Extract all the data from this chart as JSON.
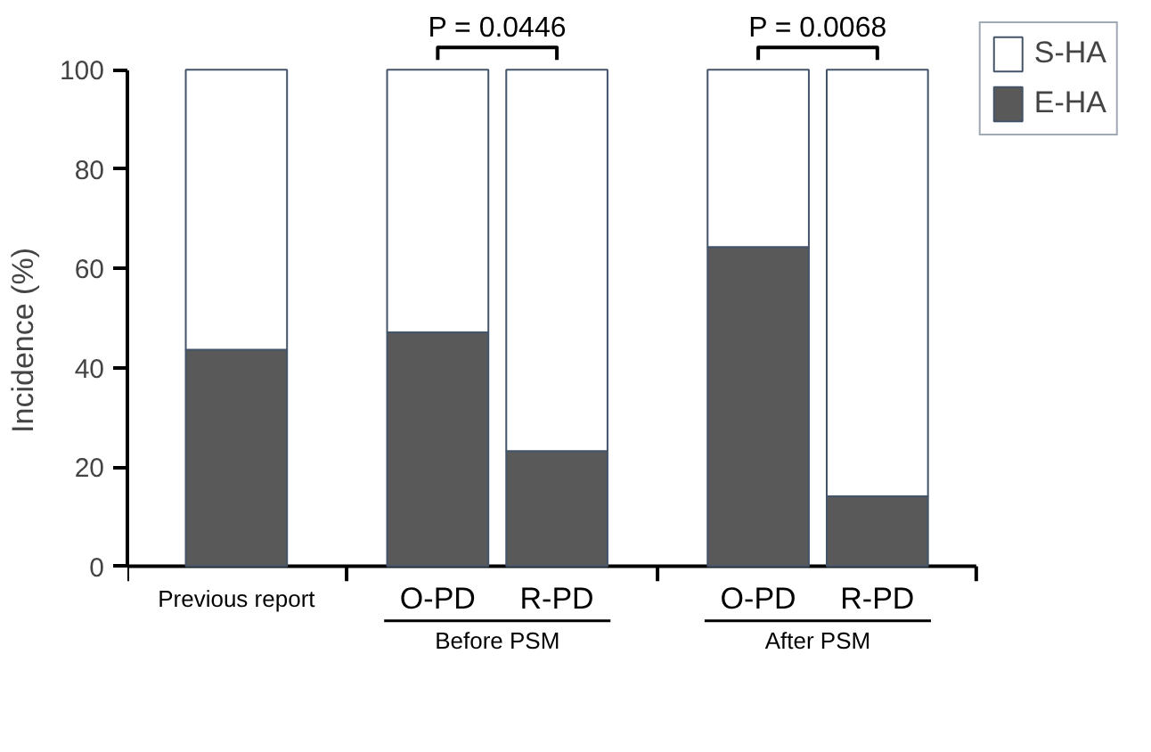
{
  "chart_data": {
    "type": "bar",
    "stacked": true,
    "ylabel": "Incidence (%)",
    "categories": [
      "Previous report",
      "O-PD",
      "R-PD",
      "O-PD",
      "R-PD"
    ],
    "series": [
      {
        "name": "E-HA",
        "color": "#595959",
        "values": [
          43.6,
          47.1,
          23.2,
          64.3,
          14.1
        ]
      },
      {
        "name": "S-HA",
        "color": "#ffffff",
        "values": [
          56.4,
          52.9,
          76.8,
          35.7,
          85.9
        ]
      }
    ],
    "ylim": [
      0,
      100
    ],
    "yticks": [
      0,
      20,
      40,
      60,
      80,
      100
    ],
    "grid": false,
    "legend": "top right",
    "annotations": [
      "P = 0.0446",
      "P = 0.0068",
      "Before PSM",
      "After PSM"
    ]
  }
}
